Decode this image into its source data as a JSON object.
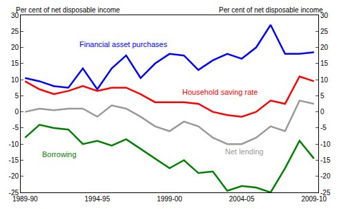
{
  "chart_data": {
    "type": "line",
    "ylabel": "Per cent of net disposable income",
    "y2label": "Per cent of net disposable income",
    "categories": [
      "1989-90",
      null,
      null,
      null,
      null,
      "1994-95",
      null,
      null,
      null,
      null,
      "1999-00",
      null,
      null,
      null,
      null,
      "2004-05",
      null,
      null,
      null,
      null,
      "2009-10"
    ],
    "series": [
      {
        "name": "Financial asset purchases",
        "color": "#0000ff",
        "values": [
          10.5,
          9.5,
          8,
          7.5,
          13.5,
          7,
          13.5,
          17.5,
          10.5,
          15,
          18,
          17.5,
          13,
          16,
          18,
          16.5,
          20,
          27,
          18,
          18,
          18.5
        ]
      },
      {
        "name": "Household saving rate",
        "color": "#ff0000",
        "values": [
          9.5,
          7,
          5.5,
          6.5,
          8,
          6.5,
          7.5,
          7.5,
          5.5,
          3,
          3,
          3,
          2.5,
          0,
          -1,
          -1.5,
          0,
          3.5,
          2.5,
          11,
          9.5
        ]
      },
      {
        "name": "Net lending",
        "color": "#999999",
        "values": [
          0,
          1,
          0.5,
          1,
          1,
          -1.5,
          2,
          1,
          -1.5,
          -4.5,
          -6,
          -3,
          -4.5,
          -8,
          -10,
          -10,
          -8,
          -4.5,
          -6,
          3.5,
          2.5
        ]
      },
      {
        "name": "Borrowing",
        "color": "#008000",
        "values": [
          -8,
          -4,
          -5,
          -5.5,
          -10,
          -9,
          -10.5,
          -8.5,
          -11.5,
          -14.5,
          -17.5,
          -15,
          -19,
          -18.5,
          -24.5,
          -23,
          -23.5,
          -25,
          -17.5,
          -9,
          -14.5
        ]
      }
    ],
    "ylim": [
      -25,
      30
    ],
    "yticks": [
      -25,
      -20,
      -15,
      -10,
      -5,
      0,
      5,
      10,
      15,
      20,
      25,
      30
    ],
    "y2lim": [
      -25,
      30
    ],
    "y2ticks": [
      -25,
      -20,
      -15,
      -10,
      -5,
      0,
      5,
      10,
      15,
      20,
      25,
      30
    ],
    "grid": false
  }
}
